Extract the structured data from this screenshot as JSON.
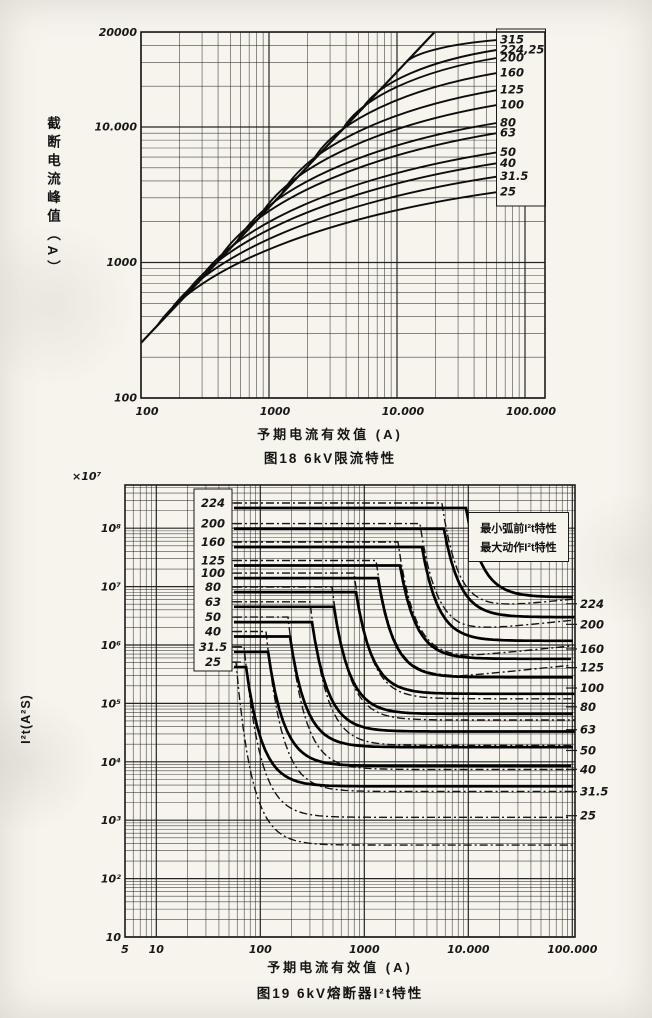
{
  "page": {
    "background": "#f6f4ed",
    "ink": "#1a1a1a"
  },
  "chart_data": [
    {
      "type": "line",
      "title": "图18  6kV限流特性",
      "xlabel": "予期电流有效值 (A)",
      "ylabel": "截断电流峰值（A）",
      "x_scale": "log",
      "y_scale": "log",
      "xlim": [
        100,
        140000
      ],
      "ylim": [
        100,
        50000
      ],
      "grid": true,
      "x_ticks": [
        {
          "v": 100,
          "label": "100"
        },
        {
          "v": 1000,
          "label": "1000"
        },
        {
          "v": 10000,
          "label": "10.000"
        },
        {
          "v": 100000,
          "label": "100.000"
        }
      ],
      "y_ticks": [
        {
          "v": 20000,
          "label": "20000",
          "at_axis_top": true
        },
        {
          "v": 10000,
          "label": "10.000"
        },
        {
          "v": 1000,
          "label": "1000"
        },
        {
          "v": 100,
          "label": "100"
        }
      ],
      "prospective_peak_line": {
        "points": [
          [
            100,
            255
          ],
          [
            19600,
            50000
          ]
        ]
      },
      "series": [
        {
          "name": "315",
          "branch_current_a": 12000,
          "end_current_a": 60000,
          "end_cutoff_peak_a": 43800
        },
        {
          "name": "224,25",
          "branch_current_a": 5360,
          "end_current_a": 60000,
          "end_cutoff_peak_a": 37000
        },
        {
          "name": "200",
          "branch_current_a": 3740,
          "end_current_a": 60000,
          "end_cutoff_peak_a": 32300
        },
        {
          "name": "160",
          "branch_current_a": 2180,
          "end_current_a": 60000,
          "end_cutoff_peak_a": 25000
        },
        {
          "name": "125",
          "branch_current_a": 1260,
          "end_current_a": 60000,
          "end_cutoff_peak_a": 18700
        },
        {
          "name": "100",
          "branch_current_a": 830,
          "end_current_a": 60000,
          "end_cutoff_peak_a": 14500
        },
        {
          "name": "80",
          "branch_current_a": 560,
          "end_current_a": 60000,
          "end_cutoff_peak_a": 10700
        },
        {
          "name": "63",
          "branch_current_a": 390,
          "end_current_a": 60000,
          "end_cutoff_peak_a": 9000
        },
        {
          "name": "50",
          "branch_current_a": 270,
          "end_current_a": 60000,
          "end_cutoff_peak_a": 6500
        },
        {
          "name": "40",
          "branch_current_a": 205,
          "end_current_a": 60000,
          "end_cutoff_peak_a": 5400
        },
        {
          "name": "31.5",
          "branch_current_a": 158,
          "end_current_a": 60000,
          "end_cutoff_peak_a": 4300
        },
        {
          "name": "25",
          "branch_current_a": 133,
          "end_current_a": 60000,
          "end_cutoff_peak_a": 3300
        }
      ]
    },
    {
      "type": "line",
      "title": "图19  6kV熔断器I²t特性",
      "xlabel": "予期电流有效值 (A)",
      "ylabel": "I²t(A²S)",
      "y_scale_label": "×10⁷",
      "x_scale": "log",
      "y_scale": "log",
      "xlim": [
        5,
        100000
      ],
      "ylim": [
        10,
        550000000
      ],
      "grid": true,
      "x_ticks": [
        {
          "v": 5,
          "label": "5"
        },
        {
          "v": 10,
          "label": "10"
        },
        {
          "v": 100,
          "label": "100"
        },
        {
          "v": 1000,
          "label": "1000"
        },
        {
          "v": 10000,
          "label": "10.000"
        },
        {
          "v": 100000,
          "label": "100.000"
        }
      ],
      "y_ticks": [
        {
          "v": 100000000,
          "label": "10⁸"
        },
        {
          "v": 10000000,
          "label": "10⁷"
        },
        {
          "v": 1000000,
          "label": "10⁶"
        },
        {
          "v": 100000,
          "label": "10⁵"
        },
        {
          "v": 10000,
          "label": "10⁴"
        },
        {
          "v": 1000,
          "label": "10³"
        },
        {
          "v": 100,
          "label": "10²"
        },
        {
          "v": 10,
          "label": "10"
        }
      ],
      "legend": {
        "min_label": "最小弧前I²t特性",
        "max_label": "最大动作I²t特性"
      },
      "series": [
        {
          "rating": "224",
          "i2t_at_small_current": 270000000,
          "knee_current_a": 8300,
          "min_prearc_i2t": 3900000,
          "max_operating_i2t": 6600000
        },
        {
          "rating": "200",
          "i2t_at_small_current": 120000000,
          "knee_current_a": 5100,
          "min_prearc_i2t": 1700000,
          "max_operating_i2t": 3000000
        },
        {
          "rating": "160",
          "i2t_at_small_current": 58000000,
          "knee_current_a": 3140,
          "min_prearc_i2t": 620000,
          "max_operating_i2t": 1180000
        },
        {
          "rating": "125",
          "i2t_at_small_current": 28000000,
          "knee_current_a": 1930,
          "min_prearc_i2t": 290000,
          "max_operating_i2t": 580000
        },
        {
          "rating": "100",
          "i2t_at_small_current": 17000000,
          "knee_current_a": 1185,
          "min_prearc_i2t": 120000,
          "max_operating_i2t": 280000
        },
        {
          "rating": "80",
          "i2t_at_small_current": 9800000,
          "knee_current_a": 728,
          "min_prearc_i2t": 52000,
          "max_operating_i2t": 146000
        },
        {
          "rating": "63",
          "i2t_at_small_current": 5500000,
          "knee_current_a": 448,
          "min_prearc_i2t": 19000,
          "max_operating_i2t": 66000
        },
        {
          "rating": "50",
          "i2t_at_small_current": 3000000,
          "knee_current_a": 275,
          "min_prearc_i2t": 7400,
          "max_operating_i2t": 33000
        },
        {
          "rating": "40",
          "i2t_at_small_current": 1700000,
          "knee_current_a": 169,
          "min_prearc_i2t": 3100,
          "max_operating_i2t": 17800
        },
        {
          "rating": "31.5",
          "i2t_at_small_current": 930000,
          "knee_current_a": 104,
          "min_prearc_i2t": 1120,
          "max_operating_i2t": 8500
        },
        {
          "rating": "25",
          "i2t_at_small_current": 510000,
          "knee_current_a": 64,
          "min_prearc_i2t": 375,
          "max_operating_i2t": 3800
        }
      ]
    }
  ]
}
